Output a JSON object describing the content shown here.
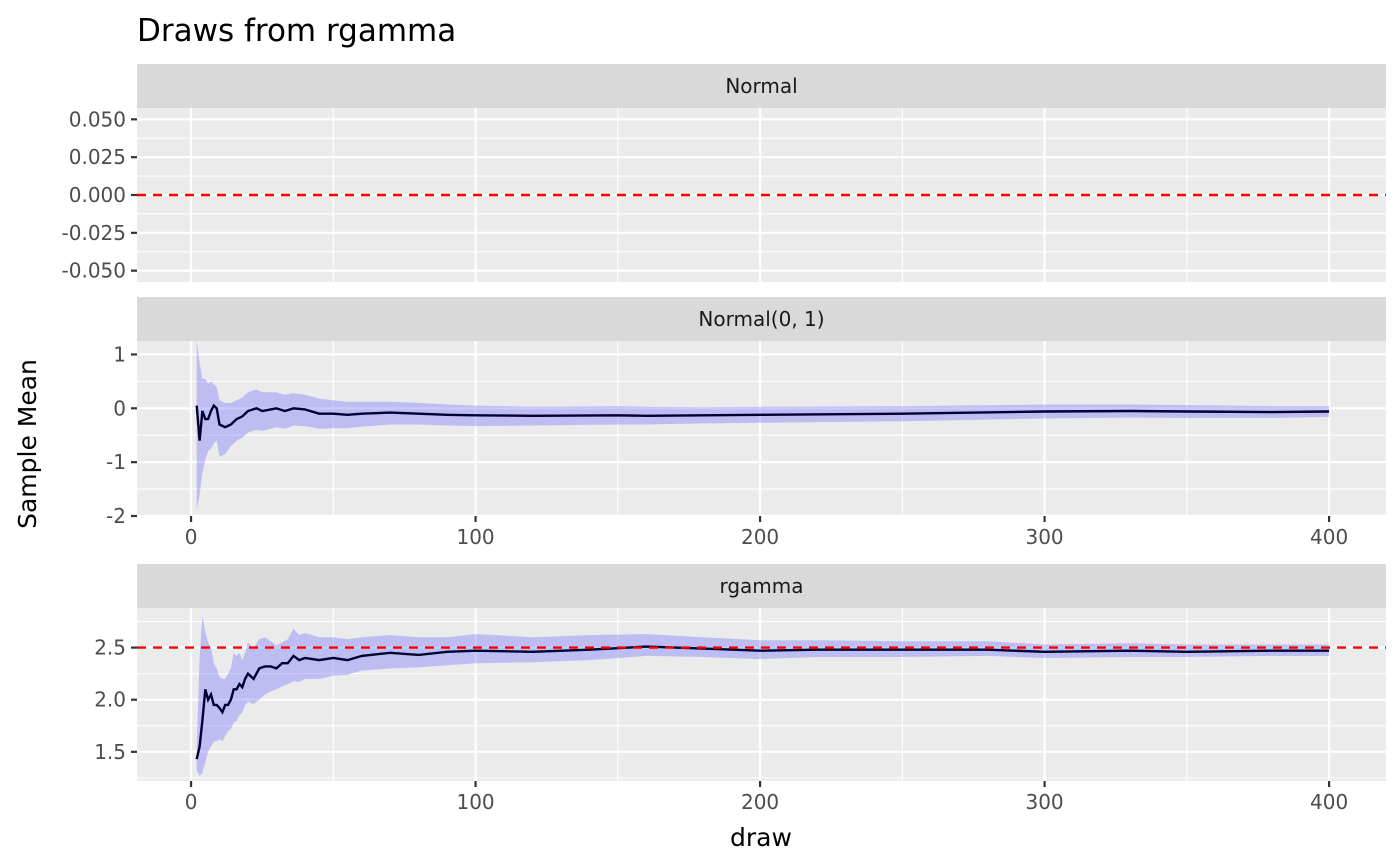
{
  "chart_data": {
    "type": "line",
    "title": "Draws from rgamma",
    "xlabel": "draw",
    "ylabel": "Sample Mean",
    "grid": true,
    "xlim": [
      -19,
      420
    ],
    "x_ticks": [
      0,
      100,
      200,
      300,
      400
    ],
    "panels": [
      {
        "name": "Normal",
        "ylim": [
          -0.0575,
          0.0575
        ],
        "y_ticks": [
          0.05,
          0.025,
          0.0,
          -0.025,
          -0.05
        ],
        "y_tick_labels": [
          "0.050",
          "0.025",
          "0.000",
          "-0.025",
          "-0.050"
        ],
        "reference_line": 0.0,
        "show_x_axis": false,
        "series": []
      },
      {
        "name": "Normal(0, 1)",
        "ylim": [
          -2.0,
          1.25
        ],
        "y_ticks": [
          1,
          0,
          -1,
          -2
        ],
        "y_tick_labels": [
          "1",
          "0",
          "-1",
          "-2"
        ],
        "reference_line": null,
        "show_x_axis": true,
        "series": [
          {
            "x": [
              2,
              3,
              4,
              5,
              6,
              7,
              8,
              9,
              10,
              12,
              14,
              16,
              18,
              20,
              23,
              25,
              28,
              30,
              33,
              36,
              40,
              45,
              50,
              55,
              60,
              70,
              80,
              90,
              100,
              120,
              150,
              160,
              180,
              200,
              250,
              300,
              330,
              350,
              380,
              400
            ],
            "y": [
              0.05,
              -0.6,
              -0.05,
              -0.2,
              -0.2,
              -0.05,
              0.05,
              0.0,
              -0.3,
              -0.35,
              -0.3,
              -0.2,
              -0.15,
              -0.05,
              0.0,
              -0.05,
              -0.02,
              0.0,
              -0.05,
              0.0,
              -0.02,
              -0.1,
              -0.1,
              -0.12,
              -0.1,
              -0.08,
              -0.1,
              -0.12,
              -0.13,
              -0.14,
              -0.13,
              -0.14,
              -0.13,
              -0.12,
              -0.1,
              -0.06,
              -0.05,
              -0.06,
              -0.07,
              -0.06
            ],
            "lower": [
              -1.9,
              -1.6,
              -1.2,
              -0.95,
              -0.8,
              -0.75,
              -0.65,
              -0.6,
              -0.9,
              -0.85,
              -0.7,
              -0.6,
              -0.55,
              -0.45,
              -0.4,
              -0.42,
              -0.38,
              -0.35,
              -0.38,
              -0.32,
              -0.33,
              -0.38,
              -0.37,
              -0.37,
              -0.34,
              -0.3,
              -0.3,
              -0.32,
              -0.33,
              -0.32,
              -0.3,
              -0.3,
              -0.28,
              -0.27,
              -0.24,
              -0.19,
              -0.17,
              -0.18,
              -0.18,
              -0.16
            ],
            "upper": [
              1.25,
              0.85,
              0.55,
              0.55,
              0.45,
              0.5,
              0.45,
              0.4,
              0.15,
              0.1,
              0.1,
              0.15,
              0.2,
              0.3,
              0.35,
              0.3,
              0.3,
              0.3,
              0.25,
              0.28,
              0.25,
              0.18,
              0.15,
              0.12,
              0.12,
              0.12,
              0.1,
              0.07,
              0.05,
              0.03,
              0.04,
              0.03,
              0.02,
              0.03,
              0.04,
              0.07,
              0.07,
              0.06,
              0.04,
              0.04
            ]
          }
        ]
      },
      {
        "name": "rgamma",
        "ylim": [
          1.22,
          2.88
        ],
        "y_ticks": [
          2.5,
          2.0,
          1.5
        ],
        "y_tick_labels": [
          "2.5",
          "2.0",
          "1.5"
        ],
        "reference_line": 2.5,
        "show_x_axis": true,
        "series": [
          {
            "x": [
              2,
              3,
              4,
              5,
              6,
              7,
              8,
              9,
              10,
              11,
              12,
              13,
              14,
              15,
              16,
              17,
              18,
              19,
              20,
              22,
              24,
              26,
              28,
              30,
              32,
              34,
              36,
              38,
              40,
              45,
              50,
              55,
              60,
              70,
              80,
              90,
              100,
              120,
              140,
              160,
              180,
              200,
              220,
              250,
              280,
              300,
              330,
              350,
              380,
              400
            ],
            "y": [
              1.43,
              1.55,
              1.8,
              2.1,
              2.0,
              2.05,
              1.95,
              1.95,
              1.92,
              1.88,
              1.95,
              1.95,
              2.0,
              2.1,
              2.1,
              2.15,
              2.12,
              2.2,
              2.25,
              2.2,
              2.3,
              2.32,
              2.32,
              2.3,
              2.35,
              2.35,
              2.42,
              2.38,
              2.4,
              2.38,
              2.4,
              2.38,
              2.42,
              2.45,
              2.43,
              2.46,
              2.47,
              2.46,
              2.48,
              2.51,
              2.49,
              2.47,
              2.48,
              2.48,
              2.48,
              2.46,
              2.47,
              2.46,
              2.47,
              2.47
            ],
            "lower": [
              1.32,
              1.27,
              1.3,
              1.4,
              1.5,
              1.55,
              1.6,
              1.6,
              1.62,
              1.6,
              1.65,
              1.7,
              1.72,
              1.78,
              1.8,
              1.85,
              1.88,
              1.95,
              1.98,
              1.96,
              2.0,
              2.05,
              2.08,
              2.1,
              2.13,
              2.15,
              2.18,
              2.17,
              2.2,
              2.2,
              2.23,
              2.24,
              2.28,
              2.3,
              2.31,
              2.33,
              2.35,
              2.36,
              2.38,
              2.42,
              2.41,
              2.39,
              2.41,
              2.41,
              2.42,
              2.4,
              2.41,
              2.41,
              2.42,
              2.42
            ],
            "upper": [
              1.55,
              2.4,
              2.8,
              2.65,
              2.55,
              2.5,
              2.35,
              2.3,
              2.22,
              2.2,
              2.2,
              2.25,
              2.3,
              2.45,
              2.42,
              2.45,
              2.38,
              2.45,
              2.55,
              2.5,
              2.58,
              2.6,
              2.56,
              2.52,
              2.55,
              2.58,
              2.68,
              2.62,
              2.64,
              2.6,
              2.6,
              2.58,
              2.6,
              2.62,
              2.6,
              2.6,
              2.63,
              2.6,
              2.62,
              2.63,
              2.6,
              2.57,
              2.57,
              2.56,
              2.56,
              2.53,
              2.54,
              2.53,
              2.53,
              2.53
            ]
          }
        ]
      }
    ]
  }
}
